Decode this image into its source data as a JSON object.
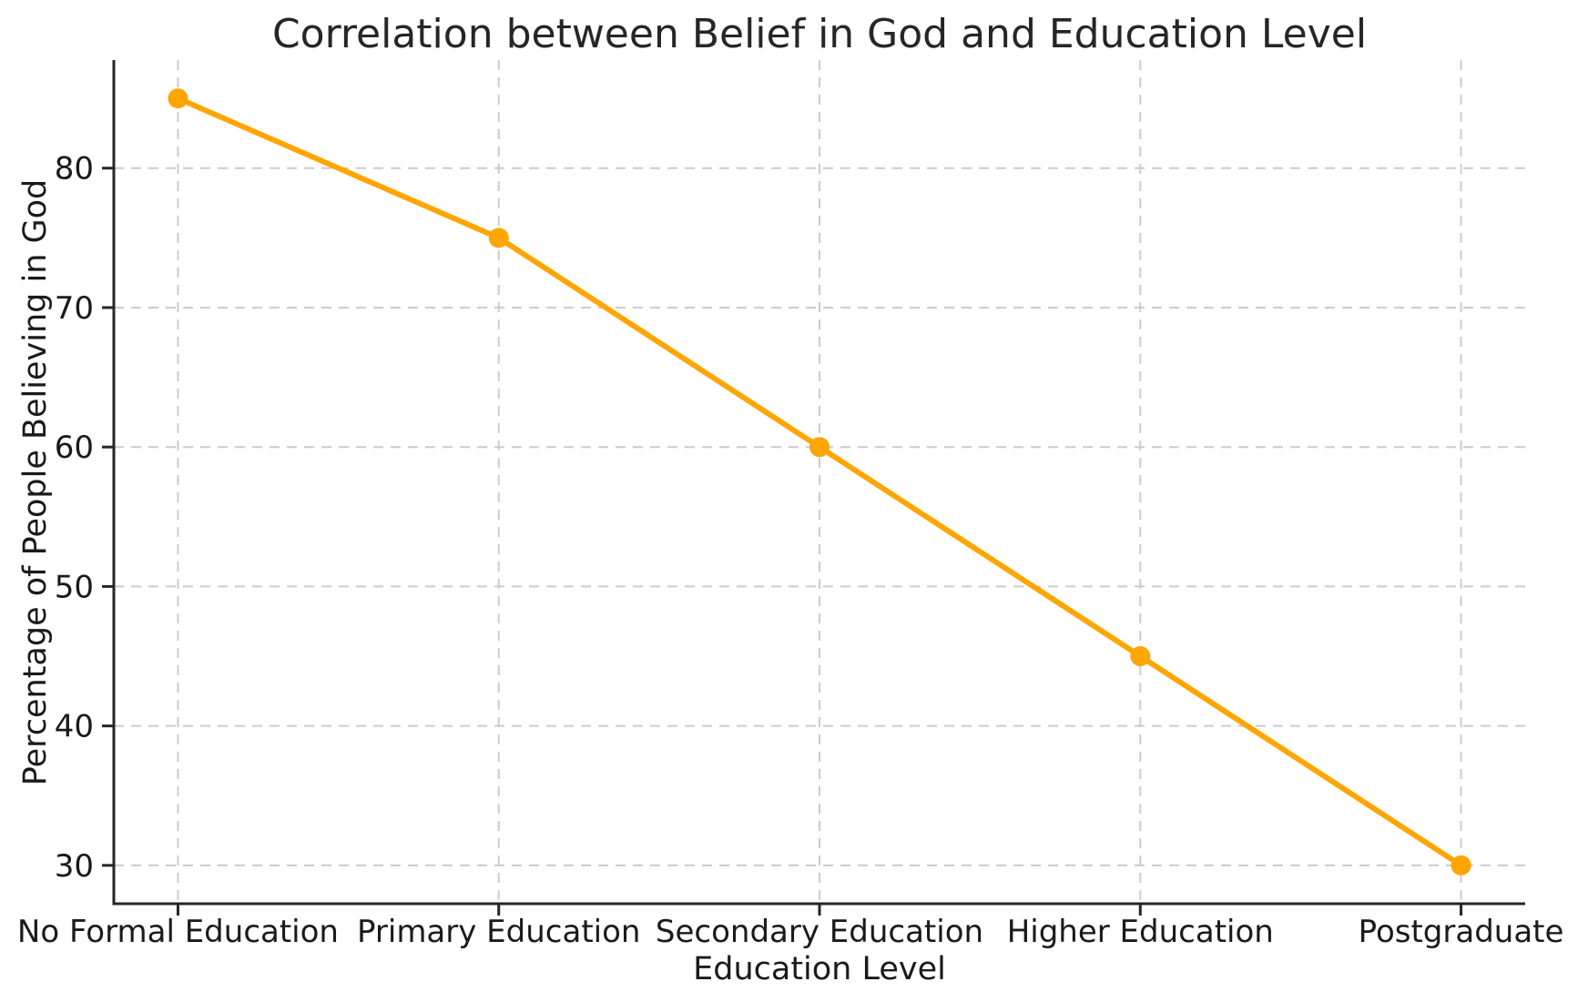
{
  "chart_data": {
    "type": "line",
    "title": "Correlation between Belief in God and Education Level",
    "xlabel": "Education Level",
    "ylabel": "Percentage of People Believing in God",
    "categories": [
      "No Formal Education",
      "Primary Education",
      "Secondary Education",
      "Higher Education",
      "Postgraduate"
    ],
    "series": [
      {
        "name": "Percentage of People Believing in God",
        "values": [
          85,
          75,
          60,
          45,
          30
        ]
      }
    ],
    "yticks": [
      30,
      40,
      50,
      60,
      70,
      80
    ],
    "ylim": [
      27.25,
      87.75
    ],
    "xlim": [
      -0.2,
      4.2
    ],
    "grid": "both-dashed",
    "legend": null,
    "line_color": "#FFA500",
    "marker": "circle",
    "grid_color": "#cccccc",
    "spine_color": "#262626",
    "text_color": "#1a1a1a",
    "background": "#ffffff"
  }
}
